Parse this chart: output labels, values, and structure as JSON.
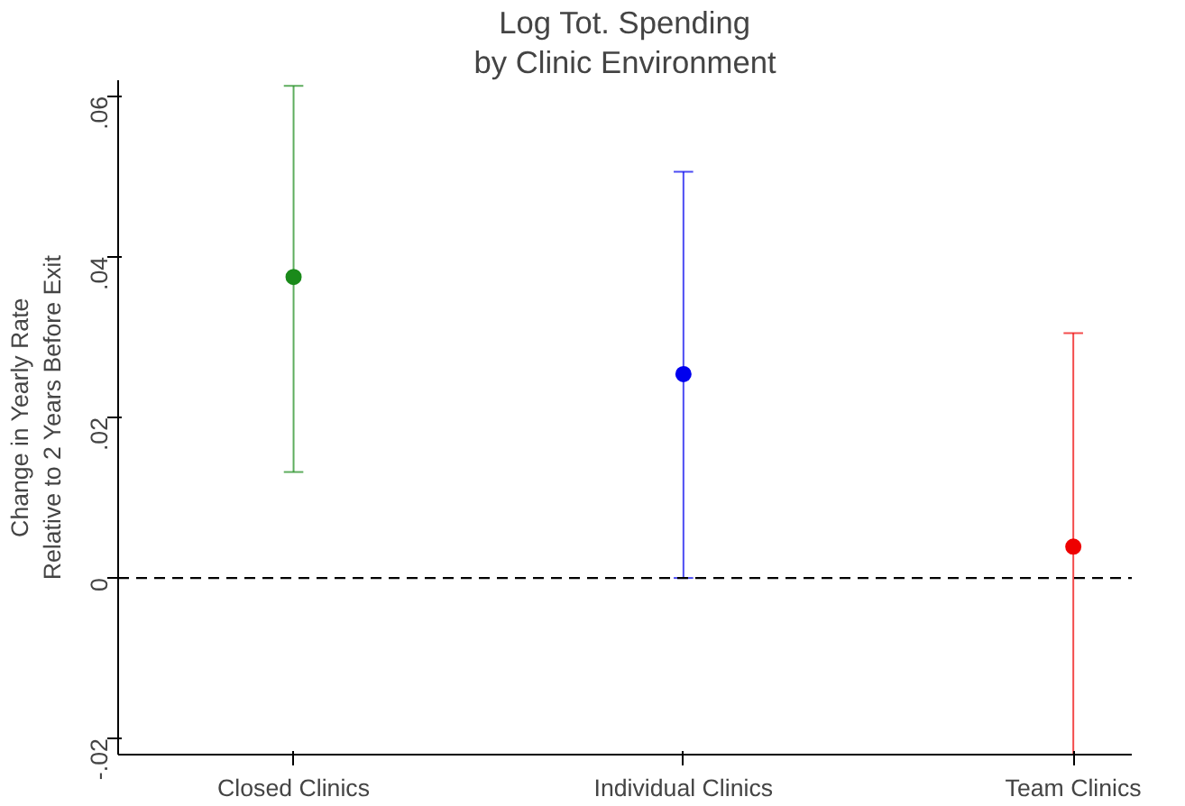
{
  "chart_data": {
    "type": "scatter",
    "title": "Log Tot. Spending",
    "subtitle": "by Clinic Environment",
    "ylabel": "Change in Yearly Rate\nRelative to 2 Years Before Exit",
    "categories": [
      "Closed Clinics",
      "Individual Clinics",
      "Team Clinics"
    ],
    "values": [
      0.0375,
      0.0254,
      0.0039
    ],
    "colors": [
      "#1a8a1a",
      "#0000ee",
      "#ee0000"
    ],
    "errors": [
      [
        0.0132,
        0.0613
      ],
      [
        0.0,
        0.0506
      ],
      [
        -0.022,
        0.0305
      ]
    ],
    "ylim": [
      -0.022,
      0.062
    ],
    "yticks": [
      {
        "value": -0.02,
        "label": "-.02"
      },
      {
        "value": 0,
        "label": "0"
      },
      {
        "value": 0.02,
        "label": ".02"
      },
      {
        "value": 0.04,
        "label": ".04"
      },
      {
        "value": 0.06,
        "label": ".06"
      }
    ],
    "ref_lines": [
      {
        "axis": "y",
        "value": 0,
        "line_style": "dashed",
        "color": "#000000"
      }
    ],
    "marker": "circle",
    "grid": false
  }
}
